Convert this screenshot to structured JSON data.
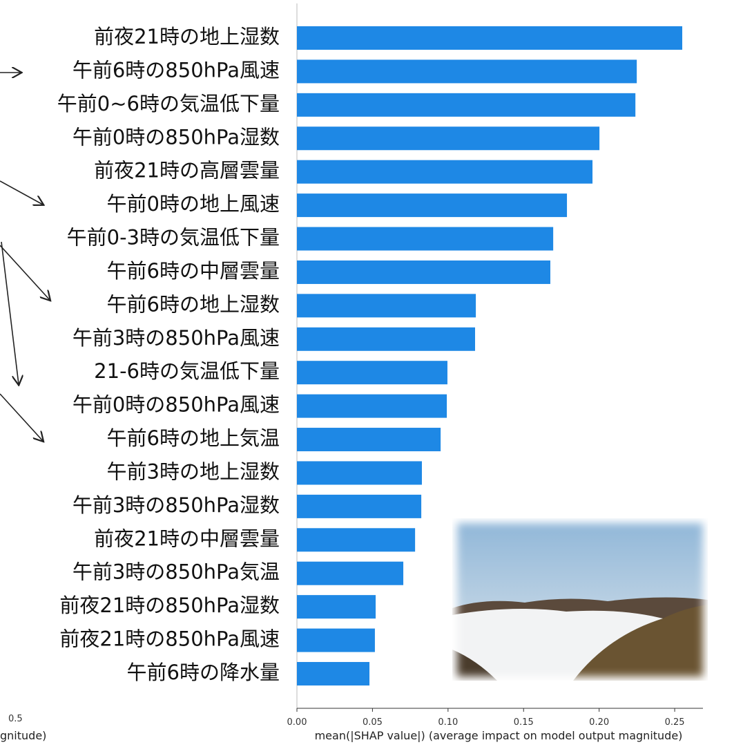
{
  "chart_data": {
    "type": "barh",
    "categories": [
      "前夜21時の地上湿数",
      "午前6時の850hPa風速",
      "午前0~6時の気温低下量",
      "午前0時の850hPa湿数",
      "前夜21時の高層雲量",
      "午前0時の地上風速",
      "午前0-3時の気温低下量",
      "午前6時の中層雲量",
      "午前6時の地上湿数",
      "午前3時の850hPa風速",
      "21-6時の気温低下量",
      "午前0時の850hPa風速",
      "午前6時の地上気温",
      "午前3時の地上湿数",
      "午前3時の850hPa湿数",
      "前夜21時の中層雲量",
      "午前3時の850hPa気温",
      "前夜21時の850hPa湿数",
      "前夜21時の850hPa風速",
      "午前6時の降水量"
    ],
    "values": [
      0.255,
      0.2249,
      0.224,
      0.2002,
      0.1956,
      0.1787,
      0.1696,
      0.1677,
      0.1184,
      0.1179,
      0.0996,
      0.0992,
      0.0951,
      0.0827,
      0.0823,
      0.0782,
      0.0704,
      0.0521,
      0.0516,
      0.048
    ],
    "color": "#1e88e5",
    "xlim": [
      0,
      0.2687
    ],
    "xticks": [
      {
        "value": 0,
        "label": "0.00"
      },
      0.05,
      {
        "value": 0.1,
        "label": "0.10"
      },
      0.15,
      {
        "value": 0.2,
        "label": "0.20"
      },
      0.25
    ],
    "xlabel": "mean(|SHAP value|) (average impact on model output magnitude)"
  },
  "left_fragment": {
    "tick_label": "0.5",
    "axis_label": "gnitude)"
  }
}
